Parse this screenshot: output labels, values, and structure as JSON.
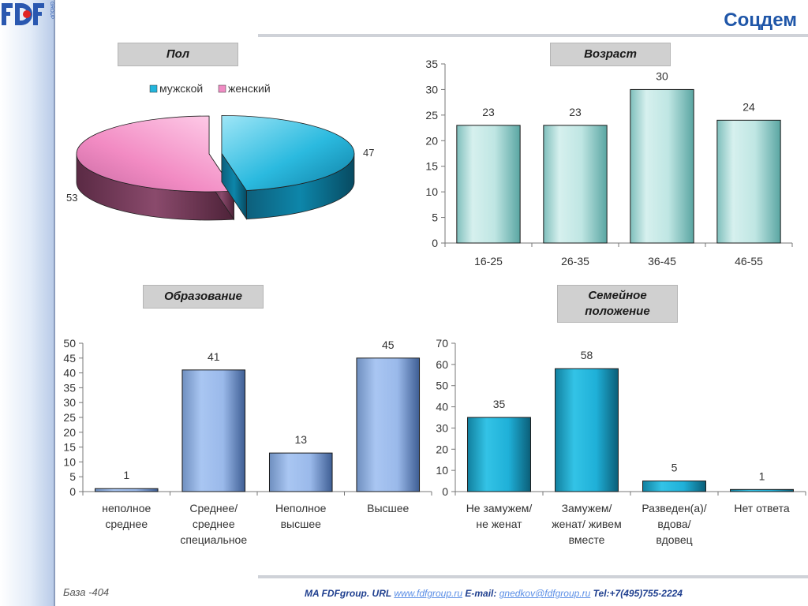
{
  "slide": {
    "title": "Соцдем",
    "logo": "FDF GROUP",
    "base_text": "База -404",
    "footer": {
      "company": "MA FDFgroup. URL ",
      "url": "www.fdfgroup.ru",
      "email_label": " E-mail: ",
      "email": "gnedkov@fdfgroup.ru",
      "tel": " Tel:+7(495)755-2224"
    }
  },
  "sections": {
    "gender": "Пол",
    "age": "Возраст",
    "education": "Образование",
    "marital_line1": "Семейное",
    "marital_line2": "положение"
  },
  "chart_data": [
    {
      "id": "gender",
      "type": "pie",
      "categories": [
        "мужской",
        "женский"
      ],
      "values": [
        47,
        53
      ],
      "colors": [
        "#23b5dc",
        "#f08cc4"
      ],
      "legend": "top"
    },
    {
      "id": "age",
      "type": "bar",
      "categories": [
        "16-25",
        "26-35",
        "36-45",
        "46-55"
      ],
      "values": [
        23,
        23,
        30,
        24
      ],
      "ylim": [
        0,
        35
      ],
      "yticks": [
        0,
        5,
        10,
        15,
        20,
        25,
        30,
        35
      ],
      "color": "#a9dbd8"
    },
    {
      "id": "education",
      "type": "bar",
      "categories": [
        [
          "неполное",
          "среднее"
        ],
        [
          "Среднее/",
          "среднее",
          "специальное"
        ],
        [
          "Неполное",
          "высшее"
        ],
        [
          "Высшее"
        ]
      ],
      "values": [
        1,
        41,
        13,
        45
      ],
      "ylim": [
        0,
        50
      ],
      "yticks": [
        0,
        5,
        10,
        15,
        20,
        25,
        30,
        35,
        40,
        45,
        50
      ],
      "color": "#8fb4ea"
    },
    {
      "id": "marital",
      "type": "bar",
      "categories": [
        [
          "Не замужем/",
          "не женат"
        ],
        [
          "Замужем/",
          "женат/ живем",
          "вместе"
        ],
        [
          "Разведен(а)/",
          "вдова/",
          "вдовец"
        ],
        [
          "Нет ответа"
        ]
      ],
      "values": [
        35,
        58,
        5,
        1
      ],
      "ylim": [
        0,
        70
      ],
      "yticks": [
        0,
        10,
        20,
        30,
        40,
        50,
        60,
        70
      ],
      "color": "#1fa9cf"
    }
  ]
}
